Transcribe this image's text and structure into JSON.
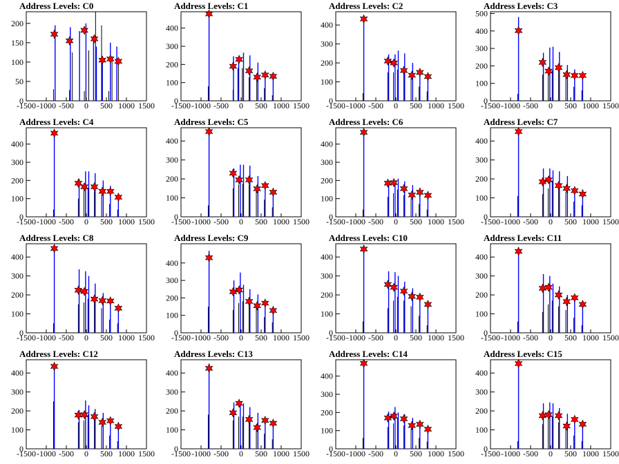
{
  "chart_data": [
    {
      "type": "bar",
      "title": "Address Levels: C0",
      "xlim": [
        -1500,
        1500
      ],
      "ylim": [
        0,
        230
      ],
      "yticks": [
        0,
        50,
        100,
        150,
        200
      ],
      "xticks": [
        -1500,
        -1000,
        -500,
        0,
        500,
        1000,
        1500
      ],
      "x": [
        -820,
        -780,
        -420,
        -400,
        -350,
        -170,
        -50,
        -10,
        60,
        180,
        230,
        250,
        380,
        400,
        560,
        600,
        640,
        760,
        800
      ],
      "values": [
        30,
        195,
        28,
        190,
        125,
        180,
        25,
        200,
        130,
        168,
        235,
        140,
        195,
        115,
        25,
        150,
        115,
        140,
        105
      ],
      "markers": {
        "x": [
          -800,
          -420,
          -50,
          200,
          400,
          600,
          800
        ],
        "y": [
          172,
          155,
          182,
          160,
          105,
          108,
          102
        ]
      }
    },
    {
      "type": "bar",
      "title": "Address Levels: C1",
      "xlim": [
        -1500,
        1500
      ],
      "ylim": [
        0,
        490
      ],
      "yticks": [
        0,
        100,
        200,
        300,
        400
      ],
      "xticks": [
        -1500,
        -1000,
        -500,
        0,
        500,
        1000,
        1500
      ],
      "x": [
        -820,
        -800,
        -200,
        -190,
        -80,
        -60,
        30,
        60,
        200,
        220,
        390,
        420,
        580,
        600,
        780,
        800
      ],
      "values": [
        80,
        480,
        60,
        245,
        180,
        240,
        180,
        265,
        130,
        250,
        150,
        210,
        70,
        150,
        30,
        135
      ],
      "markers": {
        "x": [
          -800,
          -200,
          -50,
          200,
          400,
          600,
          800
        ],
        "y": [
          478,
          190,
          228,
          165,
          130,
          142,
          135
        ]
      }
    },
    {
      "type": "bar",
      "title": "Address Levels: C2",
      "xlim": [
        -1500,
        1500
      ],
      "ylim": [
        0,
        470
      ],
      "yticks": [
        0,
        100,
        200,
        300,
        400
      ],
      "xticks": [
        -1500,
        -1000,
        -500,
        0,
        500,
        1000,
        1500
      ],
      "x": [
        -820,
        -800,
        -200,
        -180,
        -60,
        -20,
        40,
        60,
        200,
        220,
        380,
        420,
        580,
        600,
        780,
        800
      ],
      "values": [
        40,
        440,
        150,
        245,
        150,
        245,
        165,
        265,
        160,
        250,
        120,
        200,
        75,
        155,
        50,
        140
      ],
      "markers": {
        "x": [
          -800,
          -200,
          -50,
          200,
          400,
          600,
          800
        ],
        "y": [
          432,
          210,
          200,
          160,
          135,
          150,
          128
        ]
      }
    },
    {
      "type": "bar",
      "title": "Address Levels: C3",
      "xlim": [
        -1500,
        1500
      ],
      "ylim": [
        0,
        510
      ],
      "yticks": [
        0,
        100,
        200,
        300,
        400,
        500
      ],
      "xticks": [
        -1500,
        -1000,
        -500,
        0,
        500,
        1000,
        1500
      ],
      "x": [
        -820,
        -800,
        -200,
        -180,
        -60,
        -20,
        40,
        60,
        200,
        220,
        380,
        420,
        580,
        600,
        780,
        800
      ],
      "values": [
        40,
        480,
        150,
        275,
        150,
        305,
        175,
        310,
        165,
        280,
        135,
        205,
        80,
        180,
        60,
        155
      ],
      "markers": {
        "x": [
          -800,
          -200,
          -50,
          200,
          400,
          600,
          800
        ],
        "y": [
          402,
          220,
          170,
          190,
          150,
          145,
          145
        ]
      }
    },
    {
      "type": "bar",
      "title": "Address Levels: C4",
      "xlim": [
        -1500,
        1500
      ],
      "ylim": [
        0,
        490
      ],
      "yticks": [
        0,
        100,
        200,
        300,
        400
      ],
      "xticks": [
        -1500,
        -1000,
        -500,
        0,
        500,
        1000,
        1500
      ],
      "x": [
        -820,
        -800,
        -200,
        -180,
        -60,
        -20,
        40,
        60,
        200,
        220,
        380,
        420,
        580,
        600,
        780,
        800
      ],
      "values": [
        40,
        480,
        100,
        210,
        150,
        250,
        160,
        250,
        140,
        240,
        120,
        200,
        70,
        170,
        40,
        125
      ],
      "markers": {
        "x": [
          -800,
          -200,
          -50,
          200,
          400,
          600,
          800
        ],
        "y": [
          460,
          185,
          165,
          165,
          140,
          140,
          108
        ]
      }
    },
    {
      "type": "bar",
      "title": "Address Levels: C5",
      "xlim": [
        -1500,
        1500
      ],
      "ylim": [
        0,
        470
      ],
      "yticks": [
        0,
        100,
        200,
        300,
        400
      ],
      "xticks": [
        -1500,
        -1000,
        -500,
        0,
        500,
        1000,
        1500
      ],
      "x": [
        -820,
        -800,
        -200,
        -180,
        -60,
        -20,
        40,
        60,
        200,
        220,
        380,
        420,
        580,
        600,
        780,
        800
      ],
      "values": [
        60,
        455,
        150,
        255,
        170,
        275,
        175,
        275,
        170,
        270,
        140,
        215,
        90,
        180,
        50,
        140
      ],
      "markers": {
        "x": [
          -800,
          -200,
          -50,
          200,
          400,
          600,
          800
        ],
        "y": [
          450,
          230,
          195,
          195,
          148,
          165,
          130
        ]
      }
    },
    {
      "type": "bar",
      "title": "Address Levels: C6",
      "xlim": [
        -1500,
        1500
      ],
      "ylim": [
        0,
        490
      ],
      "yticks": [
        0,
        100,
        200,
        300,
        400
      ],
      "xticks": [
        -1500,
        -1000,
        -500,
        0,
        500,
        1000,
        1500
      ],
      "x": [
        -820,
        -800,
        -200,
        -180,
        -60,
        -20,
        40,
        60,
        200,
        220,
        380,
        420,
        580,
        600,
        780,
        800
      ],
      "values": [
        40,
        480,
        110,
        200,
        130,
        200,
        150,
        210,
        120,
        195,
        100,
        175,
        70,
        160,
        40,
        125
      ],
      "markers": {
        "x": [
          -800,
          -200,
          -50,
          200,
          400,
          600,
          800
        ],
        "y": [
          465,
          185,
          188,
          155,
          120,
          135,
          118
        ]
      }
    },
    {
      "type": "bar",
      "title": "Address Levels: C7",
      "xlim": [
        -1500,
        1500
      ],
      "ylim": [
        0,
        470
      ],
      "yticks": [
        0,
        100,
        200,
        300,
        400
      ],
      "xticks": [
        -1500,
        -1000,
        -500,
        0,
        500,
        1000,
        1500
      ],
      "x": [
        -820,
        -800,
        -200,
        -180,
        -60,
        -20,
        40,
        60,
        200,
        220,
        380,
        420,
        580,
        600,
        780,
        800
      ],
      "values": [
        110,
        460,
        120,
        255,
        150,
        255,
        190,
        245,
        160,
        240,
        130,
        215,
        80,
        160,
        60,
        145
      ],
      "markers": {
        "x": [
          -800,
          -200,
          -50,
          200,
          400,
          600,
          800
        ],
        "y": [
          450,
          185,
          195,
          165,
          150,
          138,
          120
        ]
      }
    },
    {
      "type": "bar",
      "title": "Address Levels: C8",
      "xlim": [
        -1500,
        1500
      ],
      "ylim": [
        0,
        470
      ],
      "yticks": [
        0,
        100,
        200,
        300,
        400
      ],
      "xticks": [
        -1500,
        -1000,
        -500,
        0,
        500,
        1000,
        1500
      ],
      "x": [
        -820,
        -800,
        -200,
        -180,
        -60,
        -20,
        40,
        60,
        200,
        220,
        380,
        420,
        580,
        600,
        780,
        800
      ],
      "values": [
        50,
        460,
        150,
        335,
        160,
        325,
        180,
        300,
        170,
        260,
        130,
        210,
        70,
        170,
        50,
        140
      ],
      "markers": {
        "x": [
          -800,
          -200,
          -50,
          200,
          400,
          600,
          800
        ],
        "y": [
          445,
          225,
          218,
          178,
          170,
          168,
          130
        ]
      }
    },
    {
      "type": "bar",
      "title": "Address Levels: C9",
      "xlim": [
        -1500,
        1500
      ],
      "ylim": [
        0,
        510
      ],
      "yticks": [
        0,
        100,
        200,
        300,
        400
      ],
      "xticks": [
        -1500,
        -1000,
        -500,
        0,
        500,
        1000,
        1500
      ],
      "x": [
        -820,
        -800,
        -200,
        -180,
        -60,
        -20,
        40,
        60,
        200,
        220,
        380,
        420,
        580,
        600,
        780,
        800
      ],
      "values": [
        150,
        470,
        130,
        300,
        170,
        345,
        180,
        275,
        180,
        250,
        150,
        220,
        90,
        180,
        60,
        150
      ],
      "markers": {
        "x": [
          -800,
          -200,
          -50,
          200,
          400,
          600,
          800
        ],
        "y": [
          430,
          235,
          245,
          180,
          155,
          170,
          128
        ]
      }
    },
    {
      "type": "bar",
      "title": "Address Levels: C10",
      "xlim": [
        -1500,
        1500
      ],
      "ylim": [
        0,
        470
      ],
      "yticks": [
        0,
        100,
        200,
        300,
        400
      ],
      "xticks": [
        -1500,
        -1000,
        -500,
        0,
        500,
        1000,
        1500
      ],
      "x": [
        -820,
        -800,
        -200,
        -180,
        -60,
        -20,
        40,
        60,
        200,
        220,
        380,
        420,
        580,
        600,
        780,
        800
      ],
      "values": [
        60,
        450,
        130,
        325,
        170,
        320,
        190,
        300,
        170,
        270,
        140,
        235,
        90,
        180,
        40,
        155
      ],
      "markers": {
        "x": [
          -800,
          -200,
          -50,
          200,
          400,
          600,
          800
        ],
        "y": [
          442,
          255,
          240,
          220,
          192,
          188,
          150
        ]
      }
    },
    {
      "type": "bar",
      "title": "Address Levels: C11",
      "xlim": [
        -1500,
        1500
      ],
      "ylim": [
        0,
        470
      ],
      "yticks": [
        0,
        100,
        200,
        300,
        400
      ],
      "xticks": [
        -1500,
        -1000,
        -500,
        0,
        500,
        1000,
        1500
      ],
      "x": [
        -820,
        -800,
        -200,
        -180,
        -60,
        -20,
        40,
        60,
        200,
        220,
        380,
        420,
        580,
        600,
        780,
        800
      ],
      "values": [
        60,
        450,
        110,
        310,
        150,
        300,
        170,
        260,
        140,
        245,
        120,
        200,
        80,
        180,
        40,
        130
      ],
      "markers": {
        "x": [
          -800,
          -200,
          -50,
          200,
          400,
          600,
          800
        ],
        "y": [
          430,
          235,
          240,
          200,
          165,
          185,
          150
        ]
      }
    },
    {
      "type": "bar",
      "title": "Address Levels: C12",
      "xlim": [
        -1500,
        1500
      ],
      "ylim": [
        0,
        470
      ],
      "yticks": [
        0,
        100,
        200,
        300,
        400
      ],
      "xticks": [
        -1500,
        -1000,
        -500,
        0,
        500,
        1000,
        1500
      ],
      "x": [
        -820,
        -800,
        -200,
        -180,
        -60,
        -20,
        40,
        60,
        200,
        220,
        380,
        420,
        580,
        600,
        780,
        800
      ],
      "values": [
        250,
        450,
        140,
        205,
        150,
        255,
        180,
        230,
        150,
        210,
        120,
        190,
        70,
        160,
        40,
        140
      ],
      "markers": {
        "x": [
          -800,
          -200,
          -50,
          200,
          400,
          600,
          800
        ],
        "y": [
          435,
          178,
          180,
          170,
          140,
          148,
          118
        ]
      }
    },
    {
      "type": "bar",
      "title": "Address Levels: C13",
      "xlim": [
        -1500,
        1500
      ],
      "ylim": [
        0,
        470
      ],
      "yticks": [
        0,
        100,
        200,
        300,
        400
      ],
      "xticks": [
        -1500,
        -1000,
        -500,
        0,
        500,
        1000,
        1500
      ],
      "x": [
        -820,
        -800,
        -200,
        -180,
        -60,
        -20,
        40,
        60,
        200,
        220,
        380,
        420,
        580,
        600,
        780,
        800
      ],
      "values": [
        180,
        450,
        150,
        245,
        170,
        250,
        170,
        240,
        150,
        220,
        130,
        190,
        80,
        170,
        50,
        145
      ],
      "markers": {
        "x": [
          -800,
          -200,
          -50,
          200,
          400,
          600,
          800
        ],
        "y": [
          425,
          190,
          240,
          155,
          112,
          150,
          135
        ]
      }
    },
    {
      "type": "bar",
      "title": "Address Levels: C14",
      "xlim": [
        -1500,
        1500
      ],
      "ylim": [
        0,
        490
      ],
      "yticks": [
        0,
        100,
        200,
        300,
        400
      ],
      "xticks": [
        -1500,
        -1000,
        -500,
        0,
        500,
        1000,
        1500
      ],
      "x": [
        -820,
        -800,
        -200,
        -180,
        -60,
        -20,
        40,
        60,
        200,
        220,
        380,
        420,
        580,
        600,
        780,
        800
      ],
      "values": [
        60,
        480,
        120,
        205,
        140,
        230,
        170,
        200,
        130,
        190,
        110,
        170,
        60,
        150,
        40,
        120
      ],
      "markers": {
        "x": [
          -800,
          -200,
          -50,
          200,
          400,
          600,
          800
        ],
        "y": [
          470,
          170,
          180,
          165,
          128,
          135,
          108
        ]
      }
    },
    {
      "type": "bar",
      "title": "Address Levels: C15",
      "xlim": [
        -1500,
        1500
      ],
      "ylim": [
        0,
        470
      ],
      "yticks": [
        0,
        100,
        200,
        300,
        400
      ],
      "xticks": [
        -1500,
        -1000,
        -500,
        0,
        500,
        1000,
        1500
      ],
      "x": [
        -820,
        -800,
        -200,
        -180,
        -60,
        -20,
        40,
        60,
        200,
        220,
        380,
        420,
        580,
        600,
        780,
        800
      ],
      "values": [
        40,
        450,
        130,
        240,
        160,
        245,
        170,
        240,
        140,
        215,
        110,
        185,
        70,
        165,
        40,
        140
      ],
      "markers": {
        "x": [
          -800,
          -200,
          -50,
          200,
          400,
          600,
          800
        ],
        "y": [
          450,
          175,
          180,
          175,
          120,
          155,
          130
        ]
      }
    }
  ],
  "colors": {
    "bar": "#0000ff",
    "bar_dark": "#000000",
    "marker_fill": "#ff0000",
    "marker_edge": "#000000",
    "axis": "#000000"
  }
}
